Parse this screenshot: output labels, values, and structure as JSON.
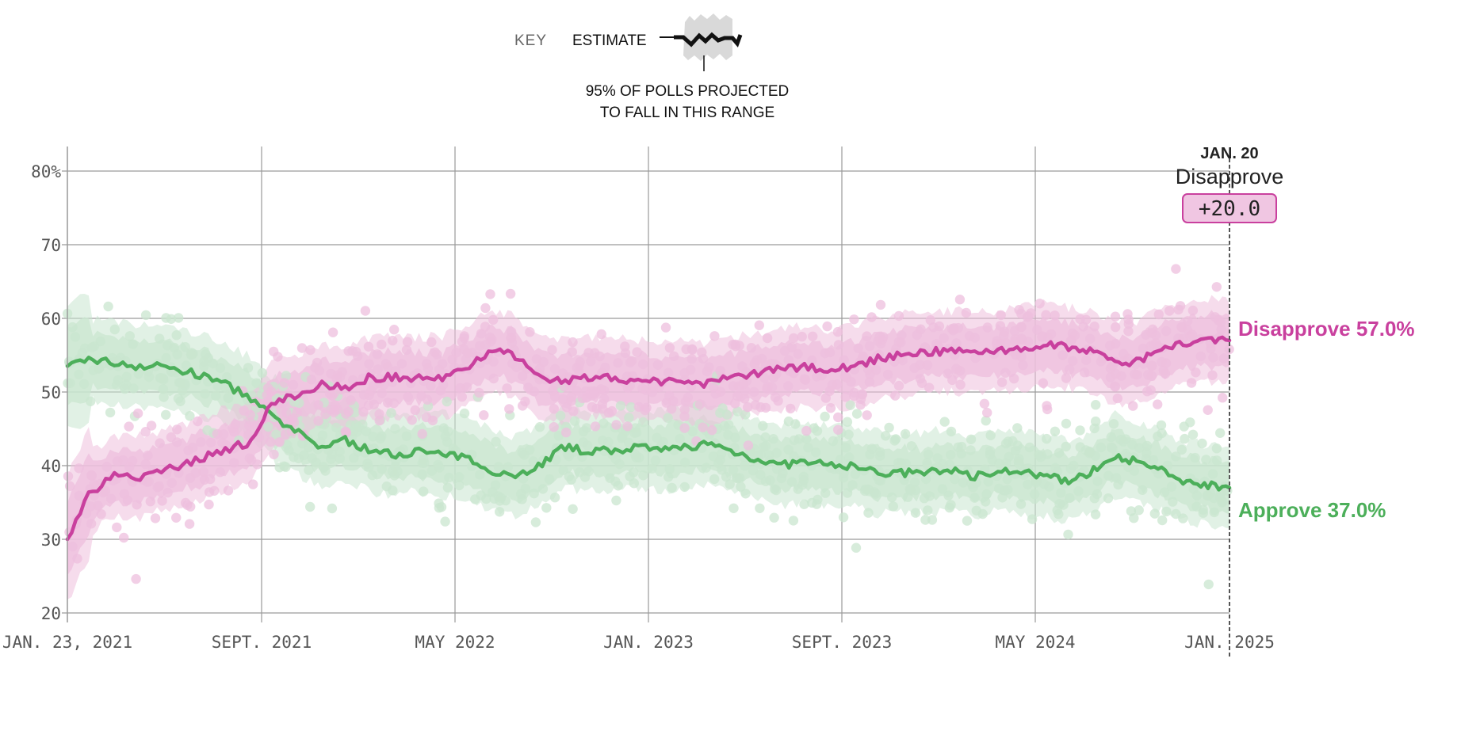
{
  "key": {
    "title": "KEY",
    "estimate_label": "ESTIMATE",
    "range_note_line1": "95% OF POLLS PROJECTED",
    "range_note_line2": "TO FALL IN THIS RANGE"
  },
  "end_annotation": {
    "date": "JAN. 20",
    "leader": "Disapprove",
    "margin": "+20.0"
  },
  "colors": {
    "approve": "#4caf5a",
    "approve_light": "#c9e5cf",
    "disapprove": "#c9409e",
    "disapprove_light": "#eebfdd",
    "grid": "#9a9a9a",
    "badge_fill": "#f0c6e2",
    "badge_stroke": "#c9409e"
  },
  "chart_data": {
    "type": "line",
    "title": "",
    "xlabel": "",
    "ylabel": "",
    "ylim": [
      20,
      80
    ],
    "y_ticks": [
      {
        "value": 80,
        "label": "80%"
      },
      {
        "value": 70,
        "label": "70"
      },
      {
        "value": 60,
        "label": "60"
      },
      {
        "value": 50,
        "label": "50"
      },
      {
        "value": 40,
        "label": "40"
      },
      {
        "value": 30,
        "label": "30"
      },
      {
        "value": 20,
        "label": "20"
      }
    ],
    "x_range": [
      "2021-01-23",
      "2025-01-20"
    ],
    "x_ticks": [
      {
        "date": "2021-01-23",
        "label": "JAN. 23, 2021"
      },
      {
        "date": "2021-09-01",
        "label": "SEPT. 2021"
      },
      {
        "date": "2022-05-01",
        "label": "MAY 2022"
      },
      {
        "date": "2023-01-01",
        "label": "JAN. 2023"
      },
      {
        "date": "2023-09-01",
        "label": "SEPT. 2023"
      },
      {
        "date": "2024-05-01",
        "label": "MAY 2024"
      },
      {
        "date": "2025-01-20",
        "label": "JAN. 2025"
      }
    ],
    "grid": true,
    "legend": "top-center",
    "band_note": "shaded band = 95% of polls projected to fall in this range; dots = individual polls",
    "series": [
      {
        "name": "Approve",
        "end_label": "Approve 37.0%",
        "final_value": 37.0,
        "band_halfwidth": 5.5,
        "points": [
          [
            "2021-01-23",
            53.5
          ],
          [
            "2021-02-15",
            54.5
          ],
          [
            "2021-03-15",
            54.0
          ],
          [
            "2021-04-15",
            53.5
          ],
          [
            "2021-05-15",
            53.5
          ],
          [
            "2021-06-15",
            52.5
          ],
          [
            "2021-07-15",
            51.5
          ],
          [
            "2021-08-15",
            49.5
          ],
          [
            "2021-09-15",
            46.5
          ],
          [
            "2021-10-15",
            44.5
          ],
          [
            "2021-11-15",
            42.5
          ],
          [
            "2021-12-15",
            43.5
          ],
          [
            "2022-01-15",
            42.0
          ],
          [
            "2022-02-15",
            41.5
          ],
          [
            "2022-03-15",
            42.0
          ],
          [
            "2022-04-15",
            41.5
          ],
          [
            "2022-05-15",
            41.0
          ],
          [
            "2022-06-15",
            39.5
          ],
          [
            "2022-07-15",
            38.5
          ],
          [
            "2022-08-15",
            40.0
          ],
          [
            "2022-09-15",
            42.5
          ],
          [
            "2022-10-15",
            42.0
          ],
          [
            "2022-11-15",
            42.0
          ],
          [
            "2022-12-15",
            42.5
          ],
          [
            "2023-01-15",
            42.0
          ],
          [
            "2023-02-15",
            42.5
          ],
          [
            "2023-03-15",
            43.0
          ],
          [
            "2023-04-15",
            42.0
          ],
          [
            "2023-05-15",
            41.0
          ],
          [
            "2023-06-15",
            40.0
          ],
          [
            "2023-07-15",
            40.5
          ],
          [
            "2023-08-15",
            40.0
          ],
          [
            "2023-09-15",
            40.0
          ],
          [
            "2023-10-15",
            39.0
          ],
          [
            "2023-11-15",
            39.0
          ],
          [
            "2023-12-15",
            39.0
          ],
          [
            "2024-01-15",
            39.5
          ],
          [
            "2024-02-15",
            38.5
          ],
          [
            "2024-03-15",
            39.5
          ],
          [
            "2024-04-15",
            39.0
          ],
          [
            "2024-05-15",
            38.5
          ],
          [
            "2024-06-15",
            38.0
          ],
          [
            "2024-07-15",
            39.0
          ],
          [
            "2024-08-15",
            41.5
          ],
          [
            "2024-09-15",
            40.5
          ],
          [
            "2024-10-15",
            39.5
          ],
          [
            "2024-11-15",
            38.0
          ],
          [
            "2024-12-15",
            37.5
          ],
          [
            "2025-01-20",
            37.0
          ]
        ]
      },
      {
        "name": "Disapprove",
        "end_label": "Disapprove 57.0%",
        "final_value": 57.0,
        "band_halfwidth": 5.5,
        "points": [
          [
            "2021-01-23",
            30.0
          ],
          [
            "2021-02-15",
            36.0
          ],
          [
            "2021-03-15",
            38.5
          ],
          [
            "2021-04-15",
            38.5
          ],
          [
            "2021-05-15",
            39.5
          ],
          [
            "2021-06-15",
            40.5
          ],
          [
            "2021-07-15",
            42.0
          ],
          [
            "2021-08-15",
            43.0
          ],
          [
            "2021-09-15",
            48.5
          ],
          [
            "2021-10-15",
            49.5
          ],
          [
            "2021-11-15",
            51.0
          ],
          [
            "2021-12-15",
            50.5
          ],
          [
            "2022-01-15",
            52.0
          ],
          [
            "2022-02-15",
            52.0
          ],
          [
            "2022-03-15",
            52.0
          ],
          [
            "2022-04-15",
            52.0
          ],
          [
            "2022-05-15",
            53.5
          ],
          [
            "2022-06-15",
            55.5
          ],
          [
            "2022-07-15",
            55.0
          ],
          [
            "2022-08-15",
            52.0
          ],
          [
            "2022-09-15",
            51.5
          ],
          [
            "2022-10-15",
            52.0
          ],
          [
            "2022-11-15",
            52.0
          ],
          [
            "2022-12-15",
            51.5
          ],
          [
            "2023-01-15",
            51.5
          ],
          [
            "2023-02-15",
            51.5
          ],
          [
            "2023-03-15",
            51.0
          ],
          [
            "2023-04-15",
            52.0
          ],
          [
            "2023-05-15",
            52.5
          ],
          [
            "2023-06-15",
            53.0
          ],
          [
            "2023-07-15",
            53.5
          ],
          [
            "2023-08-15",
            53.0
          ],
          [
            "2023-09-15",
            53.5
          ],
          [
            "2023-10-15",
            54.5
          ],
          [
            "2023-11-15",
            55.0
          ],
          [
            "2023-12-15",
            55.5
          ],
          [
            "2024-01-15",
            55.5
          ],
          [
            "2024-02-15",
            55.5
          ],
          [
            "2024-03-15",
            55.5
          ],
          [
            "2024-04-15",
            56.0
          ],
          [
            "2024-05-15",
            56.5
          ],
          [
            "2024-06-15",
            56.0
          ],
          [
            "2024-07-15",
            55.5
          ],
          [
            "2024-08-15",
            54.0
          ],
          [
            "2024-09-15",
            54.0
          ],
          [
            "2024-10-15",
            55.5
          ],
          [
            "2024-11-15",
            56.5
          ],
          [
            "2024-12-15",
            57.0
          ],
          [
            "2025-01-20",
            57.0
          ]
        ]
      }
    ]
  }
}
